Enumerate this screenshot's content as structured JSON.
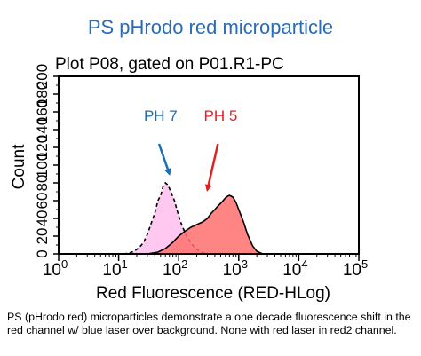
{
  "slide": {
    "title": "PS pHrodo red microparticle",
    "caption": "PS (pHrodo red) microparticles demonstrate a one decade fluorescence shift in the red channel w/ blue laser over background. None with red laser in red2 channel."
  },
  "chart_data": {
    "type": "area",
    "title": "Plot P08, gated on P01.R1-PC",
    "xlabel": "Red Fluorescence (RED-HLog)",
    "ylabel": "Count",
    "x_scale": "log",
    "xlim": [
      1,
      100000
    ],
    "ylim": [
      0,
      200
    ],
    "x_ticks": [
      {
        "value": 1,
        "base": "10",
        "exp": "0"
      },
      {
        "value": 10,
        "base": "10",
        "exp": "1"
      },
      {
        "value": 100,
        "base": "10",
        "exp": "2"
      },
      {
        "value": 1000,
        "base": "10",
        "exp": "3"
      },
      {
        "value": 10000,
        "base": "10",
        "exp": "4"
      },
      {
        "value": 100000,
        "base": "10",
        "exp": "5"
      }
    ],
    "y_ticks": [
      "0",
      "20",
      "40",
      "60",
      "80",
      "100",
      "120",
      "140",
      "160",
      "180",
      "200"
    ],
    "series": [
      {
        "name": "PH 7",
        "line_color": "#000000",
        "fill_color": "#ffc8f0",
        "dashed": true,
        "x": [
          12,
          15,
          18,
          22,
          26,
          30,
          35,
          40,
          45,
          50,
          55,
          60,
          65,
          70,
          78,
          85,
          95,
          105,
          120,
          140,
          170,
          200,
          240,
          280,
          320
        ],
        "y": [
          0,
          1,
          3,
          7,
          13,
          22,
          35,
          46,
          60,
          66,
          76,
          80,
          78,
          74,
          66,
          60,
          48,
          38,
          28,
          18,
          10,
          5,
          2,
          1,
          0
        ]
      },
      {
        "name": "PH 5",
        "line_color": "#000000",
        "fill_color": "#ff7070",
        "dashed": false,
        "x": [
          30,
          45,
          60,
          80,
          100,
          130,
          160,
          200,
          250,
          300,
          350,
          400,
          450,
          500,
          550,
          600,
          650,
          700,
          800,
          900,
          1000,
          1200,
          1400,
          1700,
          2000,
          2500
        ],
        "y": [
          0,
          2,
          6,
          13,
          20,
          26,
          30,
          33,
          36,
          40,
          46,
          50,
          54,
          57,
          60,
          63,
          65,
          66,
          64,
          58,
          50,
          36,
          22,
          9,
          3,
          0
        ]
      }
    ],
    "annotations": [
      {
        "text": "PH 7",
        "color": "#1a6fb5",
        "label_x": 50,
        "label_y": 150,
        "arrow_from": [
          47,
          124
        ],
        "arrow_to": [
          70,
          90
        ]
      },
      {
        "text": "PH 5",
        "color": "#e02020",
        "label_x": 500,
        "label_y": 150,
        "arrow_from": [
          450,
          124
        ],
        "arrow_to": [
          300,
          72
        ]
      }
    ]
  }
}
